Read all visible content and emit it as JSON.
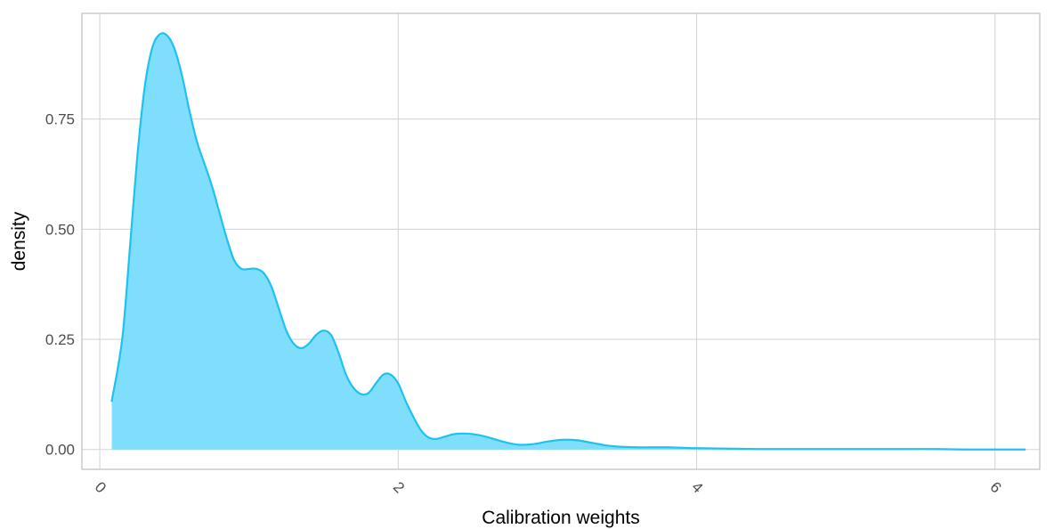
{
  "chart_data": {
    "type": "area",
    "title": "",
    "xlabel": "Calibration weights",
    "ylabel": "density",
    "xlim": [
      -0.12,
      6.3
    ],
    "ylim": [
      -0.045,
      0.99
    ],
    "x_ticks": [
      0,
      2,
      4,
      6
    ],
    "x_tick_labels": [
      "0",
      "2",
      "4",
      "6"
    ],
    "y_ticks": [
      0,
      0.25,
      0.5,
      0.75
    ],
    "y_tick_labels": [
      "0.00",
      "0.25",
      "0.50",
      "0.75"
    ],
    "grid": true,
    "legend": "none",
    "colors": {
      "line": "#1EC2F0",
      "fill": "#7FDEFB",
      "grid": "#D6D6D6",
      "panel_border": "#BFBFBF"
    },
    "series": [
      {
        "x": [
          0.08,
          0.15,
          0.2,
          0.25,
          0.3,
          0.35,
          0.4,
          0.45,
          0.5,
          0.55,
          0.6,
          0.65,
          0.7,
          0.75,
          0.8,
          0.85,
          0.9,
          0.95,
          1.0,
          1.05,
          1.1,
          1.15,
          1.2,
          1.25,
          1.3,
          1.35,
          1.4,
          1.45,
          1.5,
          1.55,
          1.6,
          1.65,
          1.7,
          1.75,
          1.8,
          1.85,
          1.9,
          1.95,
          2.0,
          2.05,
          2.1,
          2.15,
          2.2,
          2.25,
          2.3,
          2.35,
          2.4,
          2.5,
          2.6,
          2.7,
          2.8,
          2.9,
          3.0,
          3.1,
          3.2,
          3.3,
          3.4,
          3.5,
          3.6,
          3.7,
          3.8,
          3.9,
          4.0,
          4.2,
          4.4,
          4.6,
          4.8,
          5.0,
          5.2,
          5.4,
          5.6,
          5.8,
          6.0,
          6.2
        ],
        "values": [
          0.11,
          0.25,
          0.45,
          0.66,
          0.82,
          0.91,
          0.942,
          0.94,
          0.91,
          0.85,
          0.77,
          0.7,
          0.65,
          0.6,
          0.54,
          0.48,
          0.43,
          0.41,
          0.41,
          0.41,
          0.4,
          0.37,
          0.32,
          0.27,
          0.24,
          0.23,
          0.24,
          0.26,
          0.27,
          0.26,
          0.22,
          0.17,
          0.14,
          0.126,
          0.128,
          0.15,
          0.17,
          0.17,
          0.15,
          0.11,
          0.075,
          0.045,
          0.028,
          0.024,
          0.028,
          0.033,
          0.036,
          0.035,
          0.028,
          0.018,
          0.011,
          0.012,
          0.018,
          0.022,
          0.021,
          0.015,
          0.009,
          0.006,
          0.005,
          0.005,
          0.005,
          0.004,
          0.003,
          0.002,
          0.001,
          0.001,
          0.001,
          0.001,
          0.001,
          0.001,
          0.001,
          0.0,
          0.0,
          0.0
        ]
      }
    ]
  }
}
